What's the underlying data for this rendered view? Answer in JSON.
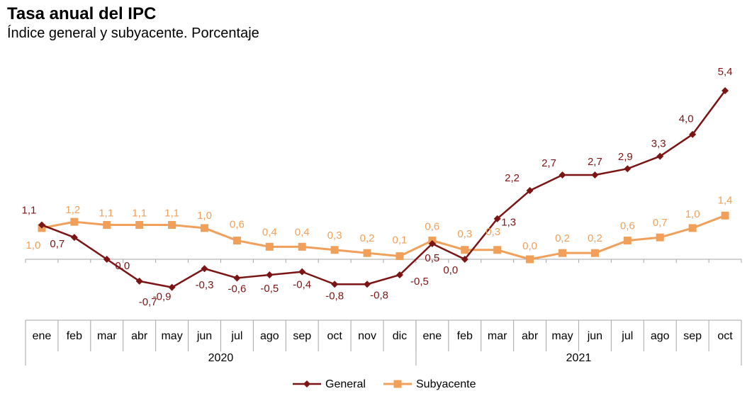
{
  "chart_data": {
    "type": "line",
    "title": "Tasa anual del IPC",
    "subtitle": "Índice general y subyacente. Porcentaje",
    "categories": [
      "ene",
      "feb",
      "mar",
      "abr",
      "may",
      "jun",
      "jul",
      "ago",
      "sep",
      "oct",
      "nov",
      "dic",
      "ene",
      "feb",
      "mar",
      "abr",
      "may",
      "jun",
      "jul",
      "ago",
      "sep",
      "oct"
    ],
    "groups": [
      {
        "label": "2020",
        "count": 12
      },
      {
        "label": "2021",
        "count": 10
      }
    ],
    "series": [
      {
        "name": "General",
        "color": "#7b1414",
        "marker": "diamond",
        "values": [
          1.1,
          0.7,
          0.0,
          -0.7,
          -0.9,
          -0.3,
          -0.6,
          -0.5,
          -0.4,
          -0.8,
          -0.8,
          -0.5,
          0.5,
          0.0,
          1.3,
          2.2,
          2.7,
          2.7,
          2.9,
          3.3,
          4.0,
          5.4
        ],
        "labels": [
          "1,1",
          "0,7",
          "0,0",
          "-0,7",
          "-0,9",
          "-0,3",
          "-0,6",
          "-0,5",
          "-0,4",
          "-0,8",
          "-0,8",
          "-0,5",
          "0,5",
          "0,0",
          "1,3",
          "2,2",
          "2,7",
          "2,7",
          "2,9",
          "3,3",
          "4,0",
          "5,4"
        ]
      },
      {
        "name": "Subyacente",
        "color": "#f0a05a",
        "marker": "square",
        "values": [
          1.0,
          1.2,
          1.1,
          1.1,
          1.1,
          1.0,
          0.6,
          0.4,
          0.4,
          0.3,
          0.2,
          0.1,
          0.6,
          0.3,
          0.3,
          0.0,
          0.2,
          0.2,
          0.6,
          0.7,
          1.0,
          1.4
        ],
        "labels": [
          "1,0",
          "1,2",
          "1,1",
          "1,1",
          "1,1",
          "1,0",
          "0,6",
          "0,4",
          "0,4",
          "0,3",
          "0,2",
          "0,1",
          "0,6",
          "0,3",
          "0,3",
          "0,0",
          "0,2",
          "0,2",
          "0,6",
          "0,7",
          "1,0",
          "1,4"
        ]
      }
    ],
    "ylim": [
      -1.5,
      6
    ],
    "grid": false,
    "legend": "bottom-center"
  }
}
